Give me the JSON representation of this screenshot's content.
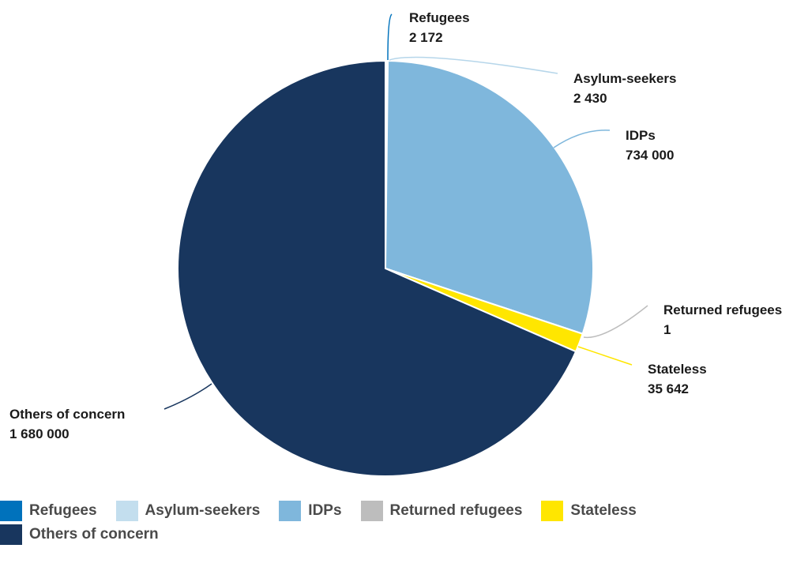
{
  "chart_data": {
    "type": "pie",
    "title": "",
    "slices": [
      {
        "name": "Refugees",
        "value": 2172,
        "label": "2 172",
        "color": "#0072BC"
      },
      {
        "name": "Asylum-seekers",
        "value": 2430,
        "label": "2 430",
        "color": "#C3DEEE"
      },
      {
        "name": "IDPs",
        "value": 734000,
        "label": "734 000",
        "color": "#7FB7DC"
      },
      {
        "name": "Returned refugees",
        "value": 1,
        "label": "1",
        "color": "#BDBDBD"
      },
      {
        "name": "Stateless",
        "value": 35642,
        "label": "35 642",
        "color": "#FFE600"
      },
      {
        "name": "Others of concern",
        "value": 1680000,
        "label": "1 680 000",
        "color": "#18365E"
      }
    ],
    "legend_position": "bottom"
  }
}
